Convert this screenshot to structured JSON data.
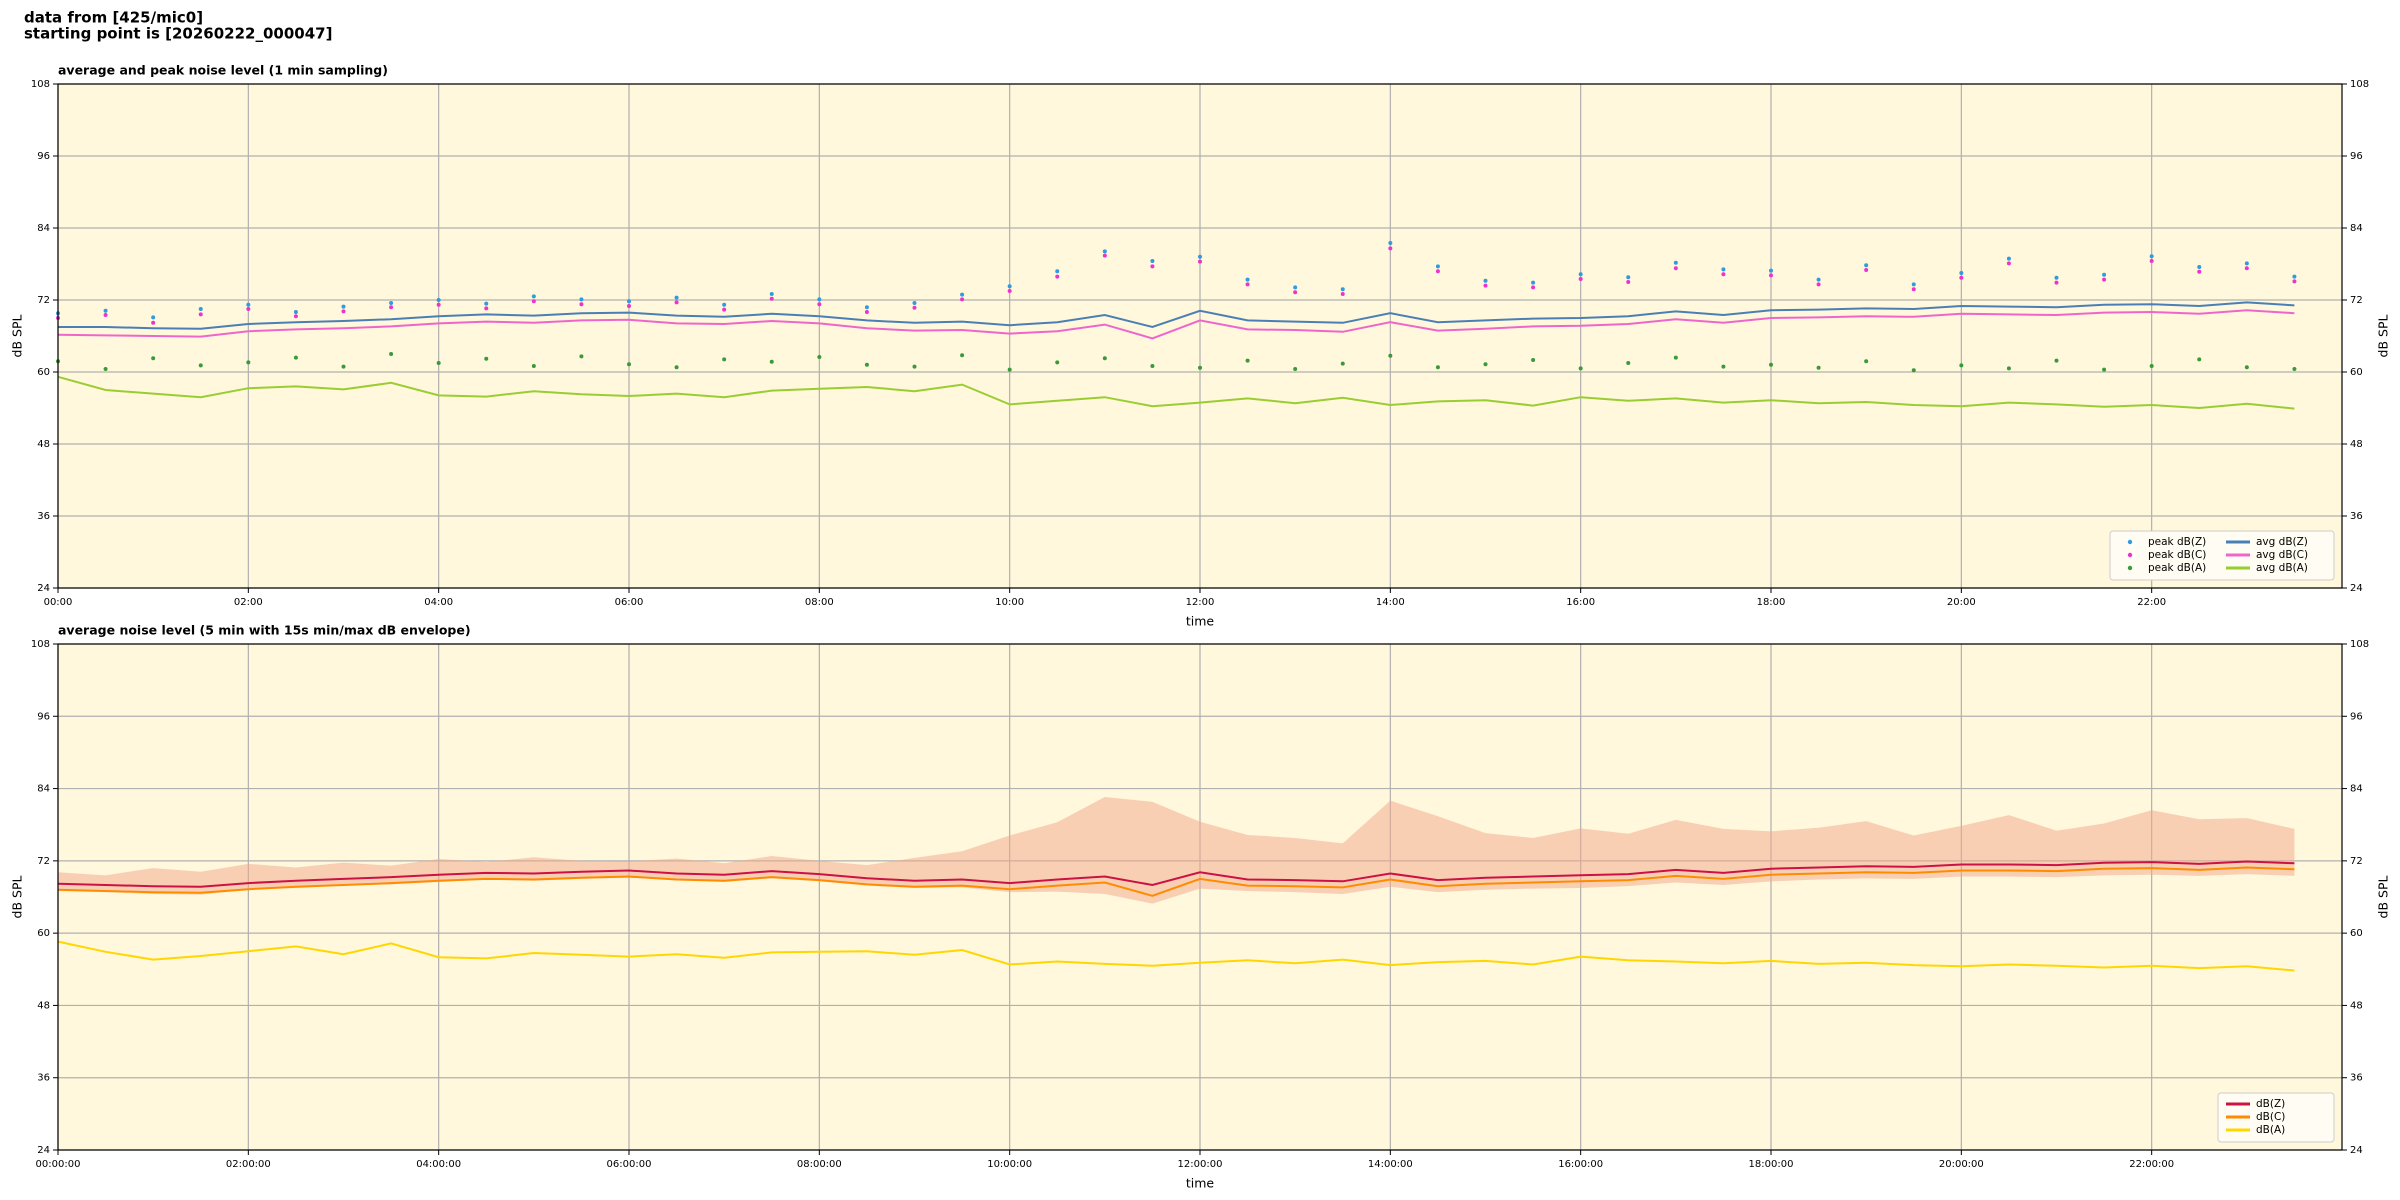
{
  "header": {
    "line1": "data from [425/mic0]",
    "line2": "starting point is [20260222_000047]"
  },
  "chart_data": [
    {
      "type": "line",
      "title": "average and peak noise level (1 min sampling)",
      "xlabel": "time",
      "ylabel": "dB SPL",
      "xlim": [
        0,
        24
      ],
      "ylim": [
        24,
        108
      ],
      "yticks": [
        24,
        36,
        48,
        60,
        72,
        84,
        96,
        108
      ],
      "xticks": [
        {
          "value": 0,
          "label": "00:00"
        },
        {
          "value": 2,
          "label": "02:00"
        },
        {
          "value": 4,
          "label": "04:00"
        },
        {
          "value": 6,
          "label": "06:00"
        },
        {
          "value": 8,
          "label": "08:00"
        },
        {
          "value": 10,
          "label": "10:00"
        },
        {
          "value": 12,
          "label": "12:00"
        },
        {
          "value": 14,
          "label": "14:00"
        },
        {
          "value": 16,
          "label": "16:00"
        },
        {
          "value": 18,
          "label": "18:00"
        },
        {
          "value": 20,
          "label": "20:00"
        },
        {
          "value": 22,
          "label": "22:00"
        }
      ],
      "grid": true,
      "legend": "lower right",
      "legend_columns": 2,
      "background": "#fff8dc",
      "x": [
        0,
        0.5,
        1,
        1.5,
        2,
        2.5,
        3,
        3.5,
        4,
        4.5,
        5,
        5.5,
        6,
        6.5,
        7,
        7.5,
        8,
        8.5,
        9,
        9.5,
        10,
        10.5,
        11,
        11.5,
        12,
        12.5,
        13,
        13.5,
        14,
        14.5,
        15,
        15.5,
        16,
        16.5,
        17,
        17.5,
        18,
        18.5,
        19,
        19.5,
        20,
        20.5,
        21,
        21.5,
        22,
        22.5,
        23,
        23.5
      ],
      "series": [
        {
          "name": "peak dB(Z)",
          "type": "scatter",
          "color": "#2f9be0",
          "values": [
            69.8,
            70.2,
            69.1,
            70.5,
            71.2,
            70.0,
            70.9,
            71.5,
            72.0,
            71.4,
            72.6,
            72.1,
            71.8,
            72.4,
            71.2,
            73.0,
            72.1,
            70.8,
            71.5,
            72.9,
            74.3,
            76.8,
            80.1,
            78.5,
            79.2,
            75.4,
            74.1,
            73.8,
            81.5,
            77.6,
            75.2,
            74.9,
            76.3,
            75.8,
            78.2,
            77.1,
            76.9,
            75.4,
            77.8,
            74.6,
            76.5,
            78.9,
            75.7,
            76.2,
            79.3,
            77.5,
            78.1,
            75.9
          ]
        },
        {
          "name": "peak dB(C)",
          "type": "scatter",
          "color": "#ee33cc",
          "values": [
            69.0,
            69.5,
            68.2,
            69.6,
            70.5,
            69.3,
            70.1,
            70.8,
            71.2,
            70.6,
            71.8,
            71.3,
            71.0,
            71.6,
            70.4,
            72.2,
            71.3,
            70.0,
            70.7,
            72.1,
            73.5,
            75.9,
            79.4,
            77.6,
            78.4,
            74.6,
            73.3,
            73.0,
            80.6,
            76.8,
            74.4,
            74.1,
            75.5,
            75.0,
            77.3,
            76.3,
            76.1,
            74.6,
            77.0,
            73.8,
            75.7,
            78.1,
            74.9,
            75.4,
            78.5,
            76.7,
            77.3,
            75.1
          ]
        },
        {
          "name": "peak dB(A)",
          "type": "scatter",
          "color": "#3a9a3a",
          "values": [
            61.8,
            60.5,
            62.3,
            61.1,
            61.6,
            62.4,
            60.9,
            63.0,
            61.5,
            62.2,
            61.0,
            62.6,
            61.3,
            60.8,
            62.1,
            61.7,
            62.5,
            61.2,
            60.9,
            62.8,
            60.4,
            61.6,
            62.3,
            61.0,
            60.7,
            61.9,
            60.5,
            61.4,
            62.7,
            60.8,
            61.3,
            62.0,
            60.6,
            61.5,
            62.4,
            60.9,
            61.2,
            60.7,
            61.8,
            60.3,
            61.1,
            60.6,
            61.9,
            60.4,
            61.0,
            62.1,
            60.8,
            60.5
          ]
        },
        {
          "name": "avg dB(Z)",
          "type": "line",
          "color": "#4a7fb5",
          "values": [
            67.5,
            67.5,
            67.3,
            67.2,
            68.0,
            68.3,
            68.5,
            68.8,
            69.3,
            69.6,
            69.4,
            69.8,
            69.9,
            69.4,
            69.2,
            69.7,
            69.3,
            68.6,
            68.2,
            68.4,
            67.8,
            68.3,
            69.5,
            67.5,
            70.2,
            68.6,
            68.4,
            68.2,
            69.8,
            68.3,
            68.6,
            68.9,
            69.0,
            69.3,
            70.1,
            69.5,
            70.3,
            70.4,
            70.6,
            70.5,
            71.0,
            70.9,
            70.8,
            71.2,
            71.3,
            71.0,
            71.6,
            71.1
          ]
        },
        {
          "name": "avg dB(C)",
          "type": "line",
          "color": "#ee66cc",
          "values": [
            66.2,
            66.1,
            66.0,
            65.9,
            66.8,
            67.1,
            67.3,
            67.6,
            68.1,
            68.4,
            68.2,
            68.6,
            68.7,
            68.1,
            68.0,
            68.5,
            68.1,
            67.3,
            66.9,
            67.0,
            66.4,
            66.8,
            67.9,
            65.6,
            68.6,
            67.1,
            67.0,
            66.7,
            68.3,
            66.9,
            67.2,
            67.6,
            67.7,
            68.0,
            68.8,
            68.2,
            69.0,
            69.1,
            69.3,
            69.2,
            69.7,
            69.6,
            69.5,
            69.9,
            70.0,
            69.7,
            70.3,
            69.8
          ]
        },
        {
          "name": "avg dB(A)",
          "type": "line",
          "color": "#9acd32",
          "values": [
            59.2,
            57.0,
            56.4,
            55.8,
            57.3,
            57.6,
            57.1,
            58.2,
            56.1,
            55.9,
            56.8,
            56.3,
            56.0,
            56.4,
            55.8,
            56.9,
            57.2,
            57.5,
            56.8,
            57.9,
            54.6,
            55.2,
            55.8,
            54.3,
            54.9,
            55.6,
            54.8,
            55.7,
            54.5,
            55.1,
            55.3,
            54.4,
            55.8,
            55.2,
            55.6,
            54.9,
            55.3,
            54.8,
            55.0,
            54.5,
            54.3,
            54.9,
            54.6,
            54.2,
            54.5,
            54.0,
            54.7,
            53.9
          ]
        }
      ]
    },
    {
      "type": "line",
      "title": "average noise level (5 min with 15s min/max dB envelope)",
      "xlabel": "time",
      "ylabel": "dB SPL",
      "xlim": [
        0,
        24
      ],
      "ylim": [
        24,
        108
      ],
      "yticks": [
        24,
        36,
        48,
        60,
        72,
        84,
        96,
        108
      ],
      "xticks": [
        {
          "value": 0,
          "label": "00:00:00"
        },
        {
          "value": 2,
          "label": "02:00:00"
        },
        {
          "value": 4,
          "label": "04:00:00"
        },
        {
          "value": 6,
          "label": "06:00:00"
        },
        {
          "value": 8,
          "label": "08:00:00"
        },
        {
          "value": 10,
          "label": "10:00:00"
        },
        {
          "value": 12,
          "label": "12:00:00"
        },
        {
          "value": 14,
          "label": "14:00:00"
        },
        {
          "value": 16,
          "label": "16:00:00"
        },
        {
          "value": 18,
          "label": "18:00:00"
        },
        {
          "value": 20,
          "label": "20:00:00"
        },
        {
          "value": 22,
          "label": "22:00:00"
        }
      ],
      "grid": true,
      "legend": "lower right",
      "legend_columns": 1,
      "background": "#fff8dc",
      "x": [
        0,
        0.5,
        1,
        1.5,
        2,
        2.5,
        3,
        3.5,
        4,
        4.5,
        5,
        5.5,
        6,
        6.5,
        7,
        7.5,
        8,
        8.5,
        9,
        9.5,
        10,
        10.5,
        11,
        11.5,
        12,
        12.5,
        13,
        13.5,
        14,
        14.5,
        15,
        15.5,
        16,
        16.5,
        17,
        17.5,
        18,
        18.5,
        19,
        19.5,
        20,
        20.5,
        21,
        21.5,
        22,
        22.5,
        23,
        23.5
      ],
      "envelope": {
        "color": "#f4a58a",
        "upper": [
          70.1,
          69.6,
          70.8,
          70.2,
          71.5,
          70.9,
          71.7,
          71.2,
          72.3,
          71.8,
          72.6,
          72.0,
          71.9,
          72.4,
          71.6,
          72.8,
          72.0,
          71.3,
          72.5,
          73.6,
          76.2,
          78.4,
          82.6,
          81.8,
          78.5,
          76.3,
          75.8,
          74.9,
          82.0,
          79.4,
          76.6,
          75.8,
          77.4,
          76.5,
          78.8,
          77.3,
          76.9,
          77.5,
          78.6,
          76.2,
          77.8,
          79.6,
          77.0,
          78.2,
          80.4,
          78.9,
          79.1,
          77.3
        ],
        "lower": [
          67.0,
          66.8,
          66.5,
          66.4,
          67.2,
          67.5,
          67.9,
          68.1,
          68.5,
          68.9,
          68.7,
          69.0,
          69.2,
          68.8,
          68.5,
          69.1,
          68.6,
          67.9,
          67.5,
          67.6,
          66.8,
          66.9,
          66.5,
          64.9,
          67.4,
          67.0,
          66.8,
          66.5,
          67.7,
          66.8,
          67.2,
          67.4,
          67.5,
          67.8,
          68.4,
          68.0,
          68.6,
          68.9,
          69.1,
          69.0,
          69.4,
          69.4,
          69.3,
          69.6,
          69.7,
          69.5,
          69.8,
          69.5
        ]
      },
      "series": [
        {
          "name": "dB(Z)",
          "type": "line",
          "color": "#cc1144",
          "values": [
            68.2,
            68.0,
            67.8,
            67.7,
            68.3,
            68.7,
            69.0,
            69.3,
            69.7,
            70.0,
            69.9,
            70.2,
            70.4,
            69.9,
            69.7,
            70.3,
            69.8,
            69.1,
            68.7,
            68.9,
            68.3,
            68.9,
            69.4,
            68.0,
            70.1,
            68.9,
            68.8,
            68.6,
            69.9,
            68.8,
            69.2,
            69.4,
            69.6,
            69.8,
            70.5,
            70.0,
            70.7,
            70.9,
            71.1,
            71.0,
            71.4,
            71.4,
            71.3,
            71.7,
            71.8,
            71.5,
            71.9,
            71.6
          ]
        },
        {
          "name": "dB(C)",
          "type": "line",
          "color": "#ff8c00",
          "values": [
            67.2,
            67.0,
            66.8,
            66.7,
            67.3,
            67.7,
            68.0,
            68.3,
            68.7,
            69.0,
            68.9,
            69.2,
            69.4,
            68.9,
            68.7,
            69.3,
            68.8,
            68.1,
            67.7,
            67.9,
            67.3,
            67.9,
            68.4,
            66.2,
            69.0,
            67.9,
            67.8,
            67.6,
            68.9,
            67.8,
            68.2,
            68.4,
            68.6,
            68.8,
            69.5,
            69.0,
            69.7,
            69.9,
            70.1,
            70.0,
            70.4,
            70.4,
            70.3,
            70.7,
            70.8,
            70.5,
            70.9,
            70.6
          ]
        },
        {
          "name": "dB(A)",
          "type": "line",
          "color": "#ffd700",
          "values": [
            58.6,
            56.9,
            55.6,
            56.2,
            57.0,
            57.8,
            56.5,
            58.3,
            56.0,
            55.8,
            56.7,
            56.4,
            56.1,
            56.5,
            55.9,
            56.8,
            56.9,
            57.0,
            56.4,
            57.2,
            54.8,
            55.3,
            54.9,
            54.6,
            55.1,
            55.5,
            55.0,
            55.6,
            54.7,
            55.2,
            55.4,
            54.8,
            56.1,
            55.5,
            55.3,
            55.0,
            55.4,
            54.9,
            55.1,
            54.7,
            54.5,
            54.8,
            54.6,
            54.3,
            54.6,
            54.2,
            54.5,
            53.8
          ]
        }
      ]
    }
  ]
}
